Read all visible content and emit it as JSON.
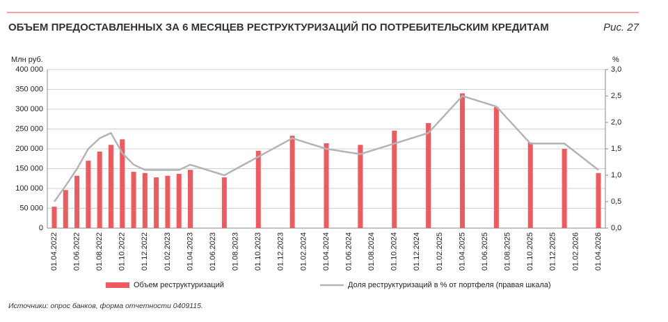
{
  "chart_data": {
    "type": "bar",
    "title": "ОБЪЕМ ПРЕДОСТАВЛЕННЫХ ЗА 6 МЕСЯЦЕВ РЕСТРУКТУРИЗАЦИЙ ПО ПОТРЕБИТЕЛЬСКИМ КРЕДИТАМ",
    "figure_label": "Рис. 27",
    "y_label": "Млн руб.",
    "y2_label": "%",
    "source": "Источники: опрос банков, форма отчетности 0409115.",
    "x": [
      "01.04.2022",
      "01.05.2022",
      "01.06.2022",
      "01.07.2022",
      "01.08.2022",
      "01.09.2022",
      "01.10.2022",
      "01.11.2022",
      "01.12.2022",
      "01.01.2023",
      "01.02.2023",
      "01.03.2023",
      "01.04.2023",
      "01.07.2023",
      "01.10.2023",
      "01.01.2024",
      "01.04.2024",
      "01.07.2024",
      "01.10.2024",
      "01.01.2025",
      "01.04.2025",
      "01.07.2025",
      "01.10.2025",
      "01.01.2026",
      "01.04.2026"
    ],
    "xlim": [
      "01.04.2022",
      "01.04.2026"
    ],
    "xticks": [
      "01.04.2022",
      "01.06.2022",
      "01.08.2022",
      "01.10.2022",
      "01.12.2022",
      "01.02.2023",
      "01.04.2023",
      "01.06.2023",
      "01.08.2023",
      "01.10.2023",
      "01.12.2023",
      "01.02.2024",
      "01.04.2024",
      "01.06.2024",
      "01.08.2024",
      "01.10.2024",
      "01.12.2024",
      "01.02.2025",
      "01.04.2025",
      "01.06.2025",
      "01.08.2025",
      "01.10.2025",
      "01.12.2025",
      "01.02.2026",
      "01.04.2026"
    ],
    "ylim": [
      0,
      400000
    ],
    "yticks": [
      0,
      {
        "value": 50000,
        "label": "50 000"
      },
      {
        "value": 100000,
        "label": "100 000"
      },
      {
        "value": 150000,
        "label": "150 000"
      },
      {
        "value": 200000,
        "label": "200 000"
      },
      {
        "value": 250000,
        "label": "250 000"
      },
      {
        "value": 300000,
        "label": "300 000"
      },
      {
        "value": 350000,
        "label": "350 000"
      },
      {
        "value": 400000,
        "label": "400 000"
      }
    ],
    "y2lim": [
      0,
      3
    ],
    "y2ticks": [
      {
        "value": 0,
        "label": "0,0"
      },
      {
        "value": 0.5,
        "label": "0,5"
      },
      {
        "value": 1,
        "label": "1,0"
      },
      {
        "value": 1.5,
        "label": "1,5"
      },
      {
        "value": 2,
        "label": "2,0"
      },
      {
        "value": 2.5,
        "label": "2,5"
      },
      {
        "value": 3,
        "label": "3,0"
      }
    ],
    "grid": true,
    "series": [
      {
        "name": "Объем реструктуризаций",
        "type": "bar",
        "color": "#ee5a5e",
        "values": [
          54000,
          96000,
          132000,
          170000,
          193000,
          210000,
          224000,
          142000,
          139000,
          128000,
          132000,
          137000,
          147000,
          128000,
          195000,
          233000,
          214000,
          210000,
          246000,
          265000,
          340000,
          305000,
          216000,
          200000,
          139000
        ]
      },
      {
        "name": "Доля реструктуризаций в % от портфеля (правая шкала)",
        "type": "line",
        "axis": "y2",
        "color": "#b4b4b4",
        "values": [
          0.5,
          0.8,
          1.12,
          1.5,
          1.7,
          1.8,
          1.42,
          1.2,
          1.1,
          1.1,
          1.1,
          1.1,
          1.2,
          1.0,
          1.35,
          1.7,
          1.5,
          1.4,
          1.6,
          1.8,
          2.5,
          2.3,
          1.6,
          1.6,
          1.1
        ]
      }
    ]
  }
}
